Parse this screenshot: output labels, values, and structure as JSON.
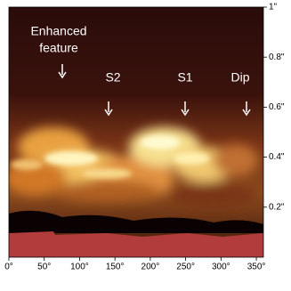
{
  "chart_data": {
    "type": "image",
    "annotations": [
      "Enhanced",
      "feature",
      "S2",
      "S1",
      "Dip"
    ],
    "xlim": [
      0,
      360
    ],
    "xticks": [
      {
        "value": 0,
        "label": "0°"
      },
      {
        "value": 50,
        "label": "50°"
      },
      {
        "value": 100,
        "label": "100°"
      },
      {
        "value": 150,
        "label": "150°"
      },
      {
        "value": 200,
        "label": "200°"
      },
      {
        "value": 250,
        "label": "250°"
      },
      {
        "value": 300,
        "label": "300°"
      },
      {
        "value": 350,
        "label": "350°"
      }
    ],
    "ylim": [
      0,
      1
    ],
    "yticks": [
      {
        "value": 0.2,
        "label": "0.2\""
      },
      {
        "value": 0.4,
        "label": "0.4\""
      },
      {
        "value": 0.6,
        "label": "0.6\""
      },
      {
        "value": 0.8,
        "label": "0.8\""
      },
      {
        "value": 1,
        "label": "1\""
      }
    ]
  }
}
